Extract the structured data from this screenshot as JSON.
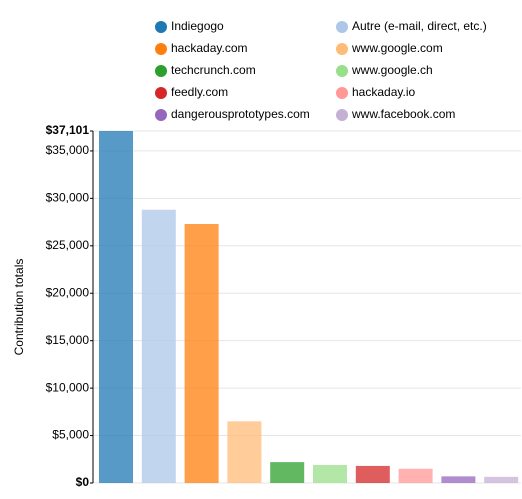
{
  "chart_data": {
    "type": "bar",
    "y_label": "Contribution totals",
    "categories": [
      "Indiegogo",
      "Autre (e-mail, direct, etc.)",
      "hackaday.com",
      "www.google.com",
      "techcrunch.com",
      "www.google.ch",
      "feedly.com",
      "hackaday.io",
      "dangerousprototypes.com",
      "www.facebook.com"
    ],
    "values": [
      37101,
      28800,
      27300,
      6500,
      2200,
      1900,
      1800,
      1500,
      700,
      650
    ],
    "colors": [
      "#1f77b4",
      "#aec7e8",
      "#ff7f0e",
      "#ffbb78",
      "#2ca02c",
      "#98df8a",
      "#d62728",
      "#ff9896",
      "#9467bd",
      "#c5b0d5"
    ],
    "ylim": [
      0,
      37101
    ],
    "yticks": [
      {
        "value": 0,
        "label": "$0"
      },
      {
        "value": 5000,
        "label": "$5,000"
      },
      {
        "value": 10000,
        "label": "$10,000"
      },
      {
        "value": 15000,
        "label": "$15,000"
      },
      {
        "value": 20000,
        "label": "$20,000"
      },
      {
        "value": 25000,
        "label": "$25,000"
      },
      {
        "value": 30000,
        "label": "$30,000"
      },
      {
        "value": 35000,
        "label": "$35,000"
      },
      {
        "value": 37101,
        "label": "$37,101"
      }
    ],
    "grid": true
  }
}
